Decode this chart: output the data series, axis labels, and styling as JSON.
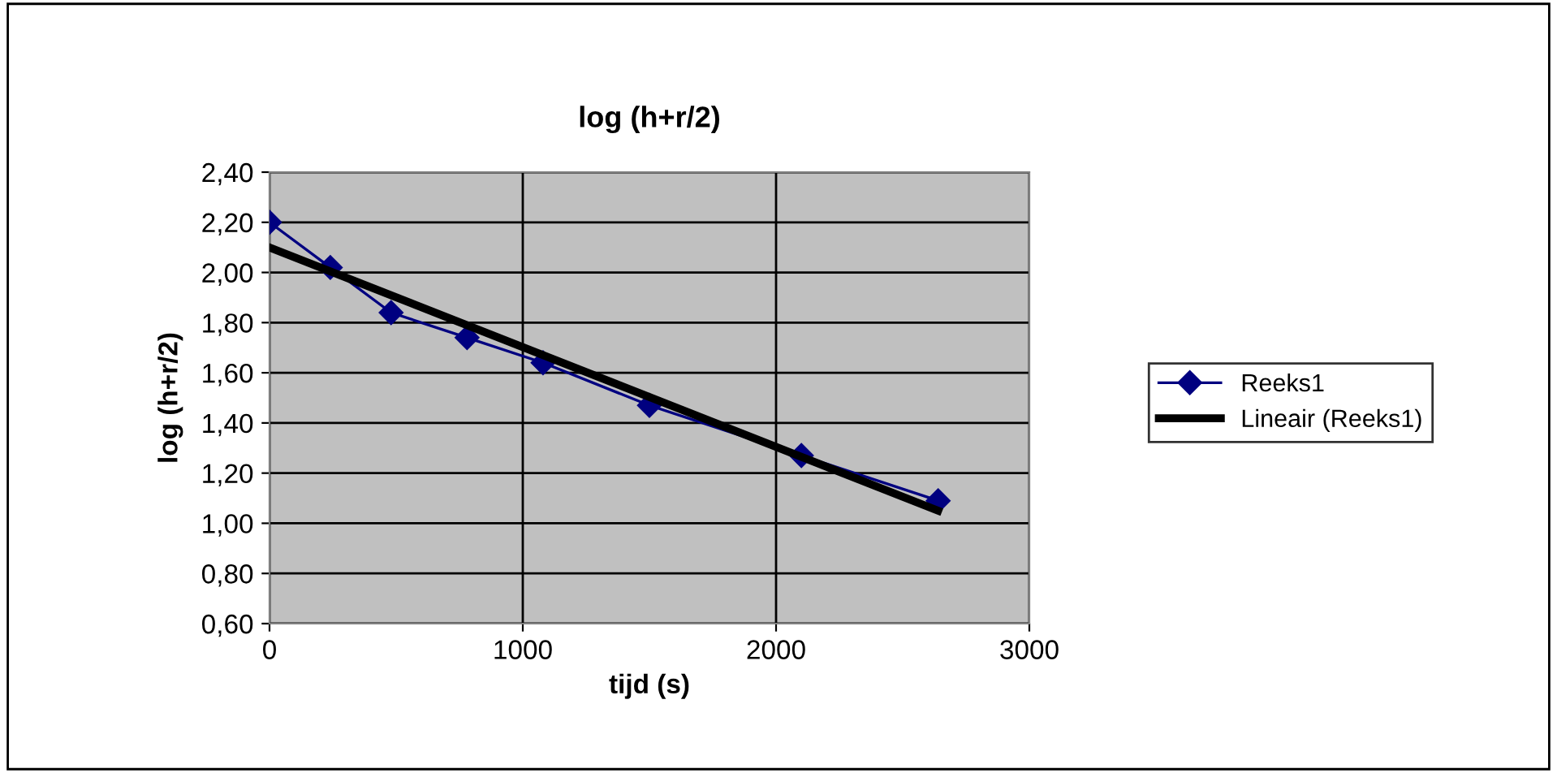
{
  "chart_data": {
    "type": "line",
    "title": "log (h+r/2)",
    "xlabel": "tijd (s)",
    "ylabel": "log (h+r/2)",
    "series": [
      {
        "name": "Reeks1",
        "color": "#000080",
        "marker": "diamond",
        "x": [
          0,
          240,
          480,
          780,
          1080,
          1500,
          2100,
          2640
        ],
        "values": [
          2.2,
          2.02,
          1.84,
          1.74,
          1.64,
          1.47,
          1.27,
          1.09
        ]
      },
      {
        "name": "Lineair (Reeks1)",
        "color": "#000000",
        "marker": "none",
        "x": [
          0,
          2640
        ],
        "values": [
          2.1,
          1.05
        ]
      }
    ],
    "xlim": [
      0,
      3000
    ],
    "xticks": [
      0,
      1000,
      2000,
      3000
    ],
    "ylim": [
      0.6,
      2.4
    ],
    "yticks": [
      {
        "value": 0.6,
        "label": "0,60"
      },
      {
        "value": 0.8,
        "label": "0,80"
      },
      {
        "value": 1.0,
        "label": "1,00"
      },
      {
        "value": 1.2,
        "label": "1,20"
      },
      {
        "value": 1.4,
        "label": "1,40"
      },
      {
        "value": 1.6,
        "label": "1,60"
      },
      {
        "value": 1.8,
        "label": "1,80"
      },
      {
        "value": 2.0,
        "label": "2,00"
      },
      {
        "value": 2.2,
        "label": "2,20"
      },
      {
        "value": 2.4,
        "label": "2,40"
      }
    ],
    "grid": true,
    "legend": "right"
  }
}
